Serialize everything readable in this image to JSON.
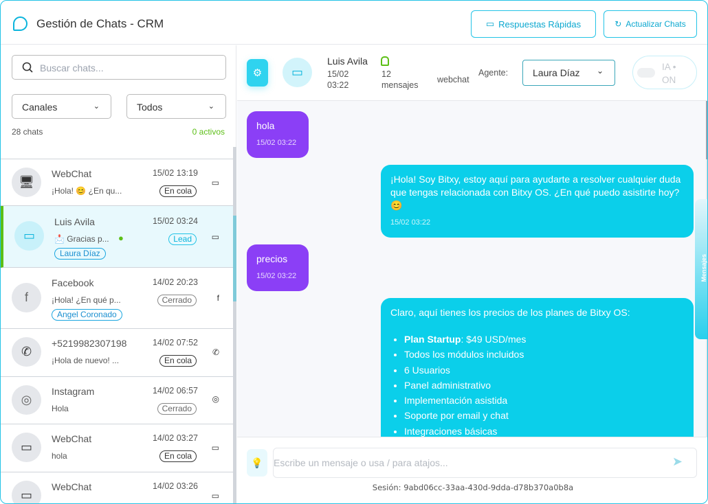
{
  "header": {
    "title": "Gestión de Chats - CRM",
    "quick_replies": "Respuestas Rápidas",
    "refresh": "Actualizar Chats"
  },
  "sidebar": {
    "search_placeholder": "Buscar chats...",
    "channel_filter": "Canales",
    "status_filter": "Todos",
    "count": "28 chats",
    "active": "0 activos",
    "chats": [
      {
        "name": "WebChat",
        "time": "15/02 13:19",
        "preview": "¡Hola! 😊 ¿En qu...",
        "status": "En cola",
        "channel": "webchat"
      },
      {
        "name": "Luis Avila",
        "time": "15/02 03:24",
        "preview": "📩 Gracias p...",
        "status": "Lead",
        "agent": "Laura Díaz",
        "channel": "webchat",
        "selected": true
      },
      {
        "name": "Facebook",
        "time": "14/02 20:23",
        "preview": "¡Hola! ¿En qué p...",
        "status": "Cerrado",
        "agent": "Angel Coronado",
        "channel": "facebook"
      },
      {
        "name": "+5219982307198",
        "time": "14/02 07:52",
        "preview": "¡Hola de nuevo! ...",
        "status": "En cola",
        "channel": "whatsapp"
      },
      {
        "name": "Instagram",
        "time": "14/02 06:57",
        "preview": "Hola",
        "status": "Cerrado",
        "channel": "instagram"
      },
      {
        "name": "WebChat",
        "time": "14/02 03:27",
        "preview": "hola",
        "status": "En cola",
        "channel": "webchat"
      },
      {
        "name": "WebChat",
        "time": "14/02 03:26",
        "preview": "",
        "status": "",
        "channel": "webchat"
      }
    ]
  },
  "chat": {
    "name": "Luis Avila",
    "date": "15/02",
    "time": "03:22",
    "count": "12",
    "count_label": "mensajes",
    "channel": "webchat",
    "agent_label": "Agente:",
    "agent": "Laura Díaz",
    "ai_toggle": "IA •",
    "ai_state": "ON",
    "side_tab": "Mensajes",
    "messages": [
      {
        "dir": "in",
        "text": "hola",
        "time": "15/02 03:22"
      },
      {
        "dir": "out",
        "text": "¡Hola! Soy Bitxy, estoy aquí para ayudarte a resolver cualquier duda que tengas relacionada con Bitxy OS. ¿En qué puedo asistirte hoy? 😊",
        "time": "15/02 03:22"
      },
      {
        "dir": "in",
        "text": "precios",
        "time": "15/02 03:22"
      },
      {
        "dir": "out",
        "text": "Claro, aquí tienes los precios de los planes de Bitxy OS:",
        "plan": "Plan Startup",
        "plan_price": ": $49 USD/mes",
        "items": [
          "Todos los módulos incluidos",
          "6 Usuarios",
          "Panel administrativo",
          "Implementación asistida",
          "Soporte por email y chat",
          "Integraciones básicas"
        ]
      }
    ],
    "input_placeholder": "Escribe un mensaje o usa / para atajos...",
    "session": "Sesión: 9abd06cc-33aa-430d-9dda-d78b370a0b8a"
  },
  "colors": {
    "accent": "#0bcfea",
    "incoming": "#8b3ff6",
    "active": "#5cbf16"
  }
}
